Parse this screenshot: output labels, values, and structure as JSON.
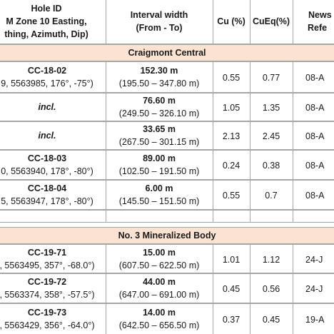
{
  "header": {
    "hole": [
      "Hole ID",
      "M Zone 10 Easting,",
      "thing, Azimuth, Dip)"
    ],
    "interval": [
      "Interval width",
      "(From - To)"
    ],
    "cu": "Cu (%)",
    "cueq": "CuEq(%)",
    "news": [
      "News",
      "Refe"
    ]
  },
  "sections": [
    {
      "title": "Craigmont Central",
      "rows": [
        {
          "hole": [
            "CC-18-02",
            "9, 5563985, 176°, -75°)"
          ],
          "interval": [
            "152.30 m",
            "(195.50 – 347.80 m)"
          ],
          "cu": "0.55",
          "cueq": "0.77",
          "news": "08-A"
        },
        {
          "hole": [
            "incl."
          ],
          "interval": [
            "76.60 m",
            "(249.50 – 326.10 m)"
          ],
          "cu": "1.05",
          "cueq": "1.35",
          "news": "08-A"
        },
        {
          "hole": [
            "incl."
          ],
          "interval": [
            "33.65 m",
            "(267.50 – 301.15 m)"
          ],
          "cu": "2.13",
          "cueq": "2.45",
          "news": "08-A"
        },
        {
          "hole": [
            "CC-18-03",
            "0, 5563940, 178°, -80°)"
          ],
          "interval": [
            "89.00 m",
            "(102.50 – 191.50 m)"
          ],
          "cu": "0.24",
          "cueq": "0.38",
          "news": "08-A"
        },
        {
          "hole": [
            "CC-18-04",
            "5, 5563947, 178°, -80°)"
          ],
          "interval": [
            "6.00 m",
            "(145.50 – 151.50 m)"
          ],
          "cu": "0.55",
          "cueq": "0.7",
          "news": "08-A"
        }
      ]
    },
    {
      "title": "No. 3 Mineralized Body",
      "rows": [
        {
          "hole": [
            "CC-19-71",
            ", 5563495, 357°, -68.0°)"
          ],
          "interval": [
            "15.00 m",
            "(607.50 – 622.50 m)"
          ],
          "cu": "1.01",
          "cueq": "1.12",
          "news": "24-J"
        },
        {
          "hole": [
            "CC-19-72",
            ", 5563374, 358°, -57.5°)"
          ],
          "interval": [
            "44.00 m",
            "(647.00 – 691.00 m)"
          ],
          "cu": "0.45",
          "cueq": "0.56",
          "news": "24-J"
        },
        {
          "hole": [
            "CC-19-73",
            ", 5563429, 356°, -64.0°)"
          ],
          "interval": [
            "14.00 m",
            "(642.50 – 656.50 m)"
          ],
          "cu": "0.37",
          "cueq": "0.45",
          "news": "19-A"
        }
      ]
    }
  ]
}
